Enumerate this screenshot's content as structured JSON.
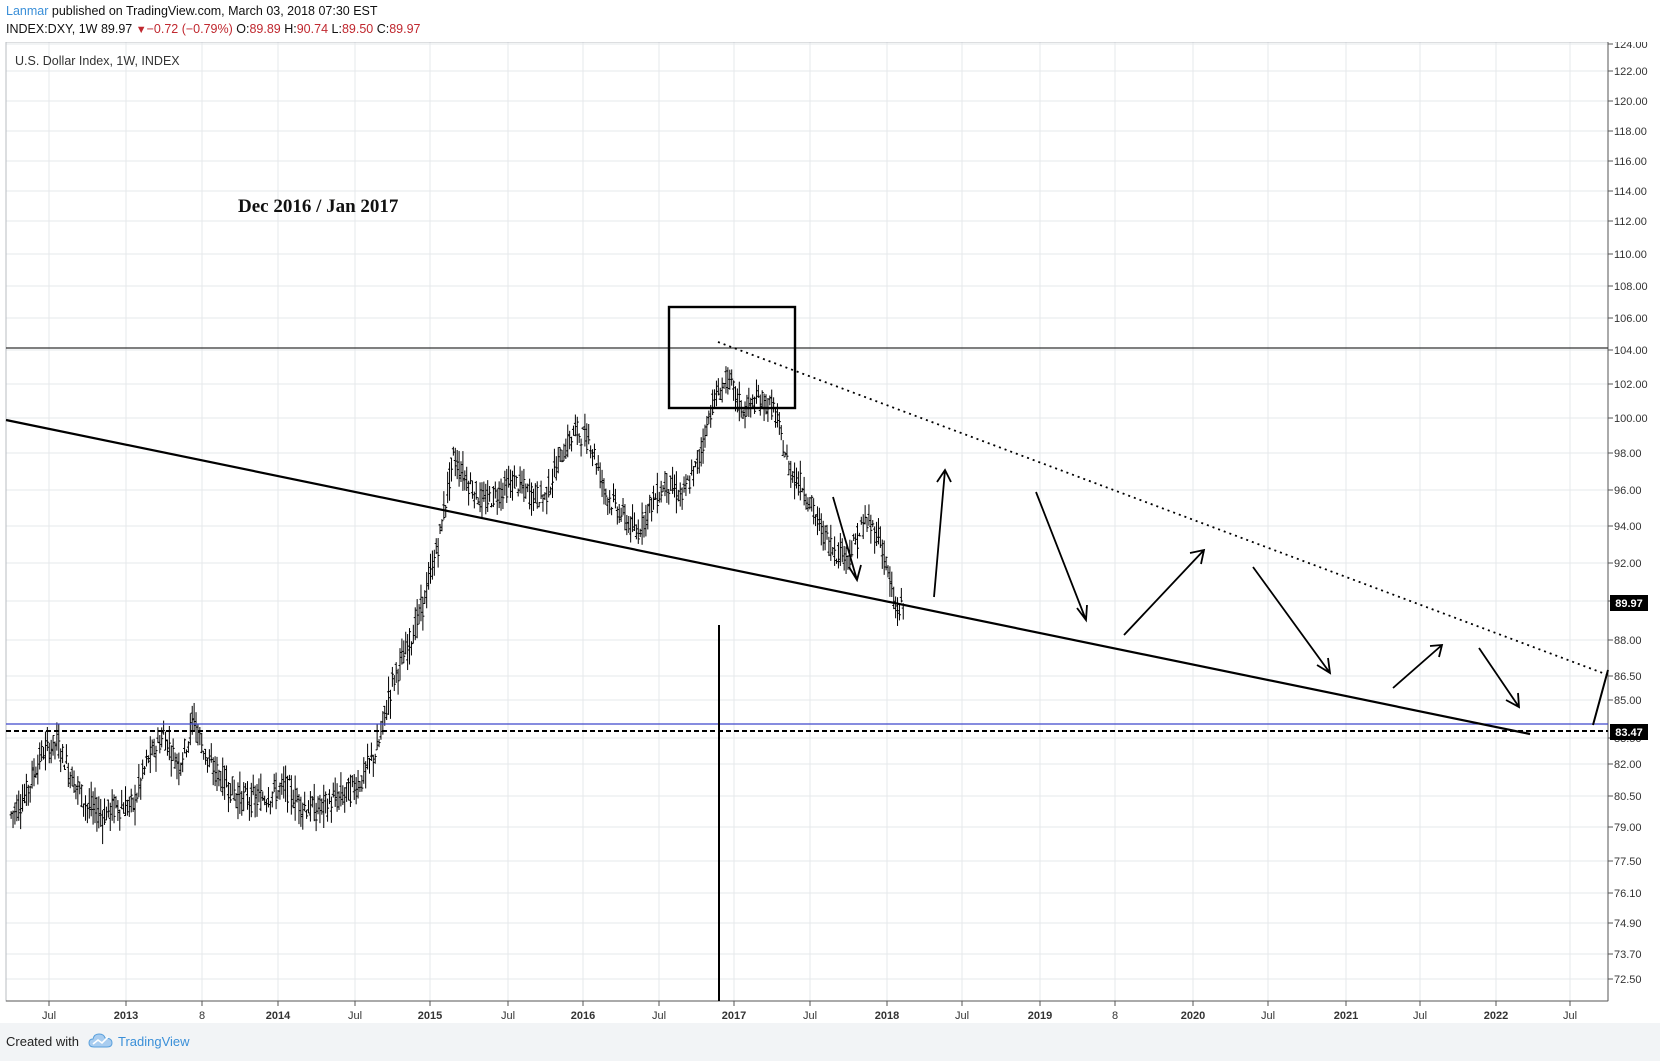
{
  "header": {
    "author": "Lanmar",
    "published_text": " published on TradingView.com, March 03, 2018 07:30 EST",
    "symbol": "INDEX:DXY, 1W",
    "last": "89.97",
    "change": "−0.72 (−0.79%)",
    "open_label": "O:",
    "open": "89.89",
    "high_label": "H:",
    "high": "90.74",
    "low_label": "L:",
    "low": "89.50",
    "close_label": "C:",
    "close": "89.97"
  },
  "chart_data": {
    "type": "candlestick",
    "title": "U.S. Dollar Index, 1W, INDEX",
    "annotation": "Dec 2016 / Jan 2017",
    "y_ticks": [
      "124.00",
      "122.00",
      "120.00",
      "118.00",
      "116.00",
      "114.00",
      "112.00",
      "110.00",
      "108.00",
      "106.00",
      "104.00",
      "102.00",
      "100.00",
      "98.00",
      "96.00",
      "94.00",
      "92.00",
      "90.50",
      "88.00",
      "86.50",
      "85.00",
      "83.50",
      "82.00",
      "80.50",
      "79.00",
      "77.50",
      "76.10",
      "74.90",
      "73.70",
      "72.50"
    ],
    "x_ticks": [
      "Jul",
      "2013",
      "8",
      "2014",
      "Jul",
      "2015",
      "Jul",
      "2016",
      "Jul",
      "2017",
      "Jul",
      "2018",
      "Jul",
      "2019",
      "8",
      "2020",
      "Jul",
      "2021",
      "Jul",
      "2022",
      "Jul"
    ],
    "price_badges": [
      "89.97",
      "83.47"
    ],
    "ylim": [
      71.3,
      124.3
    ],
    "x_range": [
      "2012-06",
      "2022-11"
    ],
    "series": {
      "t": [
        2012.25,
        2012.35,
        2012.45,
        2012.55,
        2012.65,
        2012.75,
        2012.85,
        2012.95,
        2013.05,
        2013.15,
        2013.25,
        2013.35,
        2013.45,
        2013.55,
        2013.65,
        2013.75,
        2013.85,
        2013.95,
        2014.05,
        2014.15,
        2014.25,
        2014.35,
        2014.45,
        2014.55,
        2014.65,
        2014.75,
        2014.85,
        2014.95,
        2015.05,
        2015.15,
        2015.25,
        2015.35,
        2015.45,
        2015.55,
        2015.65,
        2015.75,
        2015.85,
        2015.95,
        2016.05,
        2016.15,
        2016.25,
        2016.35,
        2016.45,
        2016.55,
        2016.65,
        2016.75,
        2016.85,
        2016.95,
        2017.05,
        2017.15,
        2017.25,
        2017.35,
        2017.45,
        2017.55,
        2017.65,
        2017.75,
        2017.85,
        2017.95,
        2018.05,
        2018.15
      ],
      "close": [
        79.6,
        80.6,
        82.6,
        83.2,
        81.4,
        80.0,
        79.6,
        80.0,
        80.0,
        82.3,
        83.6,
        82.0,
        84.3,
        82.0,
        81.2,
        80.4,
        80.3,
        80.6,
        80.9,
        80.1,
        79.8,
        80.2,
        80.6,
        81.3,
        82.8,
        85.9,
        87.6,
        89.8,
        93.0,
        97.8,
        96.4,
        95.3,
        95.9,
        96.5,
        95.8,
        95.6,
        97.8,
        99.3,
        98.7,
        95.8,
        94.7,
        93.6,
        95.3,
        96.4,
        95.6,
        97.4,
        100.9,
        102.3,
        100.4,
        101.1,
        100.6,
        97.2,
        96.1,
        94.0,
        92.7,
        92.5,
        94.3,
        93.4,
        89.5,
        89.97
      ]
    },
    "reference_lines": [
      104.0,
      83.7,
      83.47
    ]
  },
  "footer": {
    "created_with": "Created with",
    "brand": "TradingView"
  },
  "colors": {
    "candles": "#000000",
    "blue_line": "#3f48cc",
    "author": "#3a8fd8",
    "change": "#c0282f"
  }
}
